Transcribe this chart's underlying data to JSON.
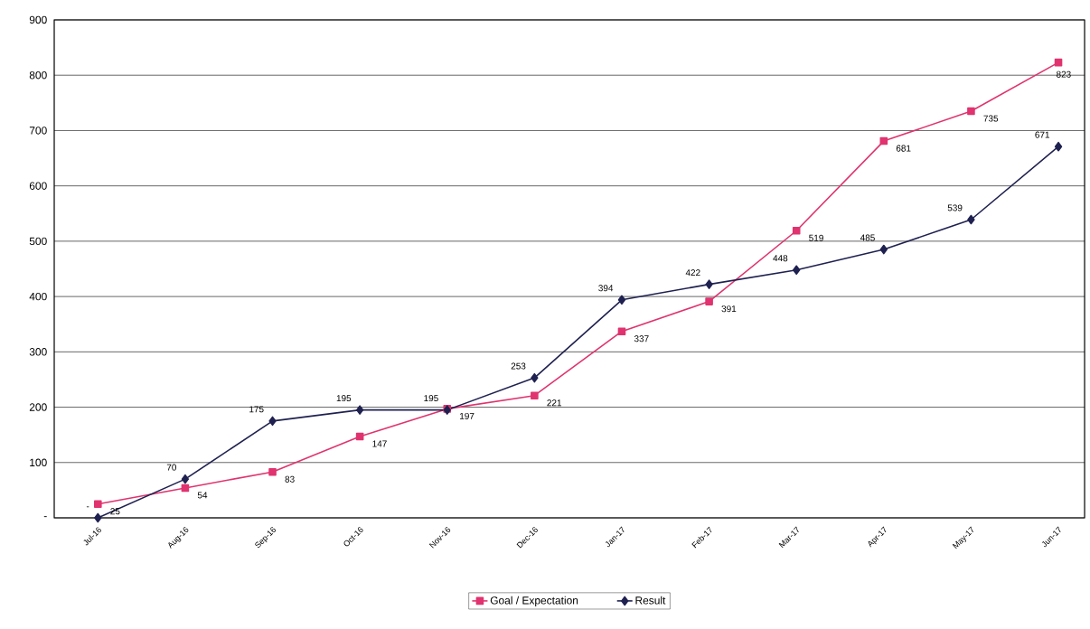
{
  "chart_data": {
    "type": "line",
    "categories": [
      "Jul-16",
      "Aug-16",
      "Sep-16",
      "Oct-16",
      "Nov-16",
      "Dec-16",
      "Jan-17",
      "Feb-17",
      "Mar-17",
      "Apr-17",
      "May-17",
      "Jun-17"
    ],
    "series": [
      {
        "name": "Goal / Expectation",
        "color": "#e0336f",
        "marker": "square",
        "values": [
          25,
          54,
          83,
          147,
          197,
          221,
          337,
          391,
          519,
          681,
          735,
          823
        ],
        "value_labels": [
          "25",
          "54",
          "83",
          "147",
          "197",
          "221",
          "337",
          "391",
          "519",
          "681",
          "735",
          "823"
        ]
      },
      {
        "name": "Result",
        "color": "#1f2150",
        "marker": "diamond",
        "values": [
          0,
          70,
          175,
          195,
          195,
          253,
          394,
          422,
          448,
          485,
          539,
          671
        ],
        "value_labels": [
          "-",
          "70",
          "175",
          "195",
          "195",
          "253",
          "394",
          "422",
          "448",
          "485",
          "539",
          "671"
        ]
      }
    ],
    "ylim": [
      0,
      900
    ],
    "yticks": [
      {
        "value": 0,
        "label": "-"
      },
      100,
      200,
      300,
      400,
      500,
      600,
      700,
      800,
      900
    ],
    "grid": "y",
    "legend": "bottom",
    "line_style": "solid"
  }
}
